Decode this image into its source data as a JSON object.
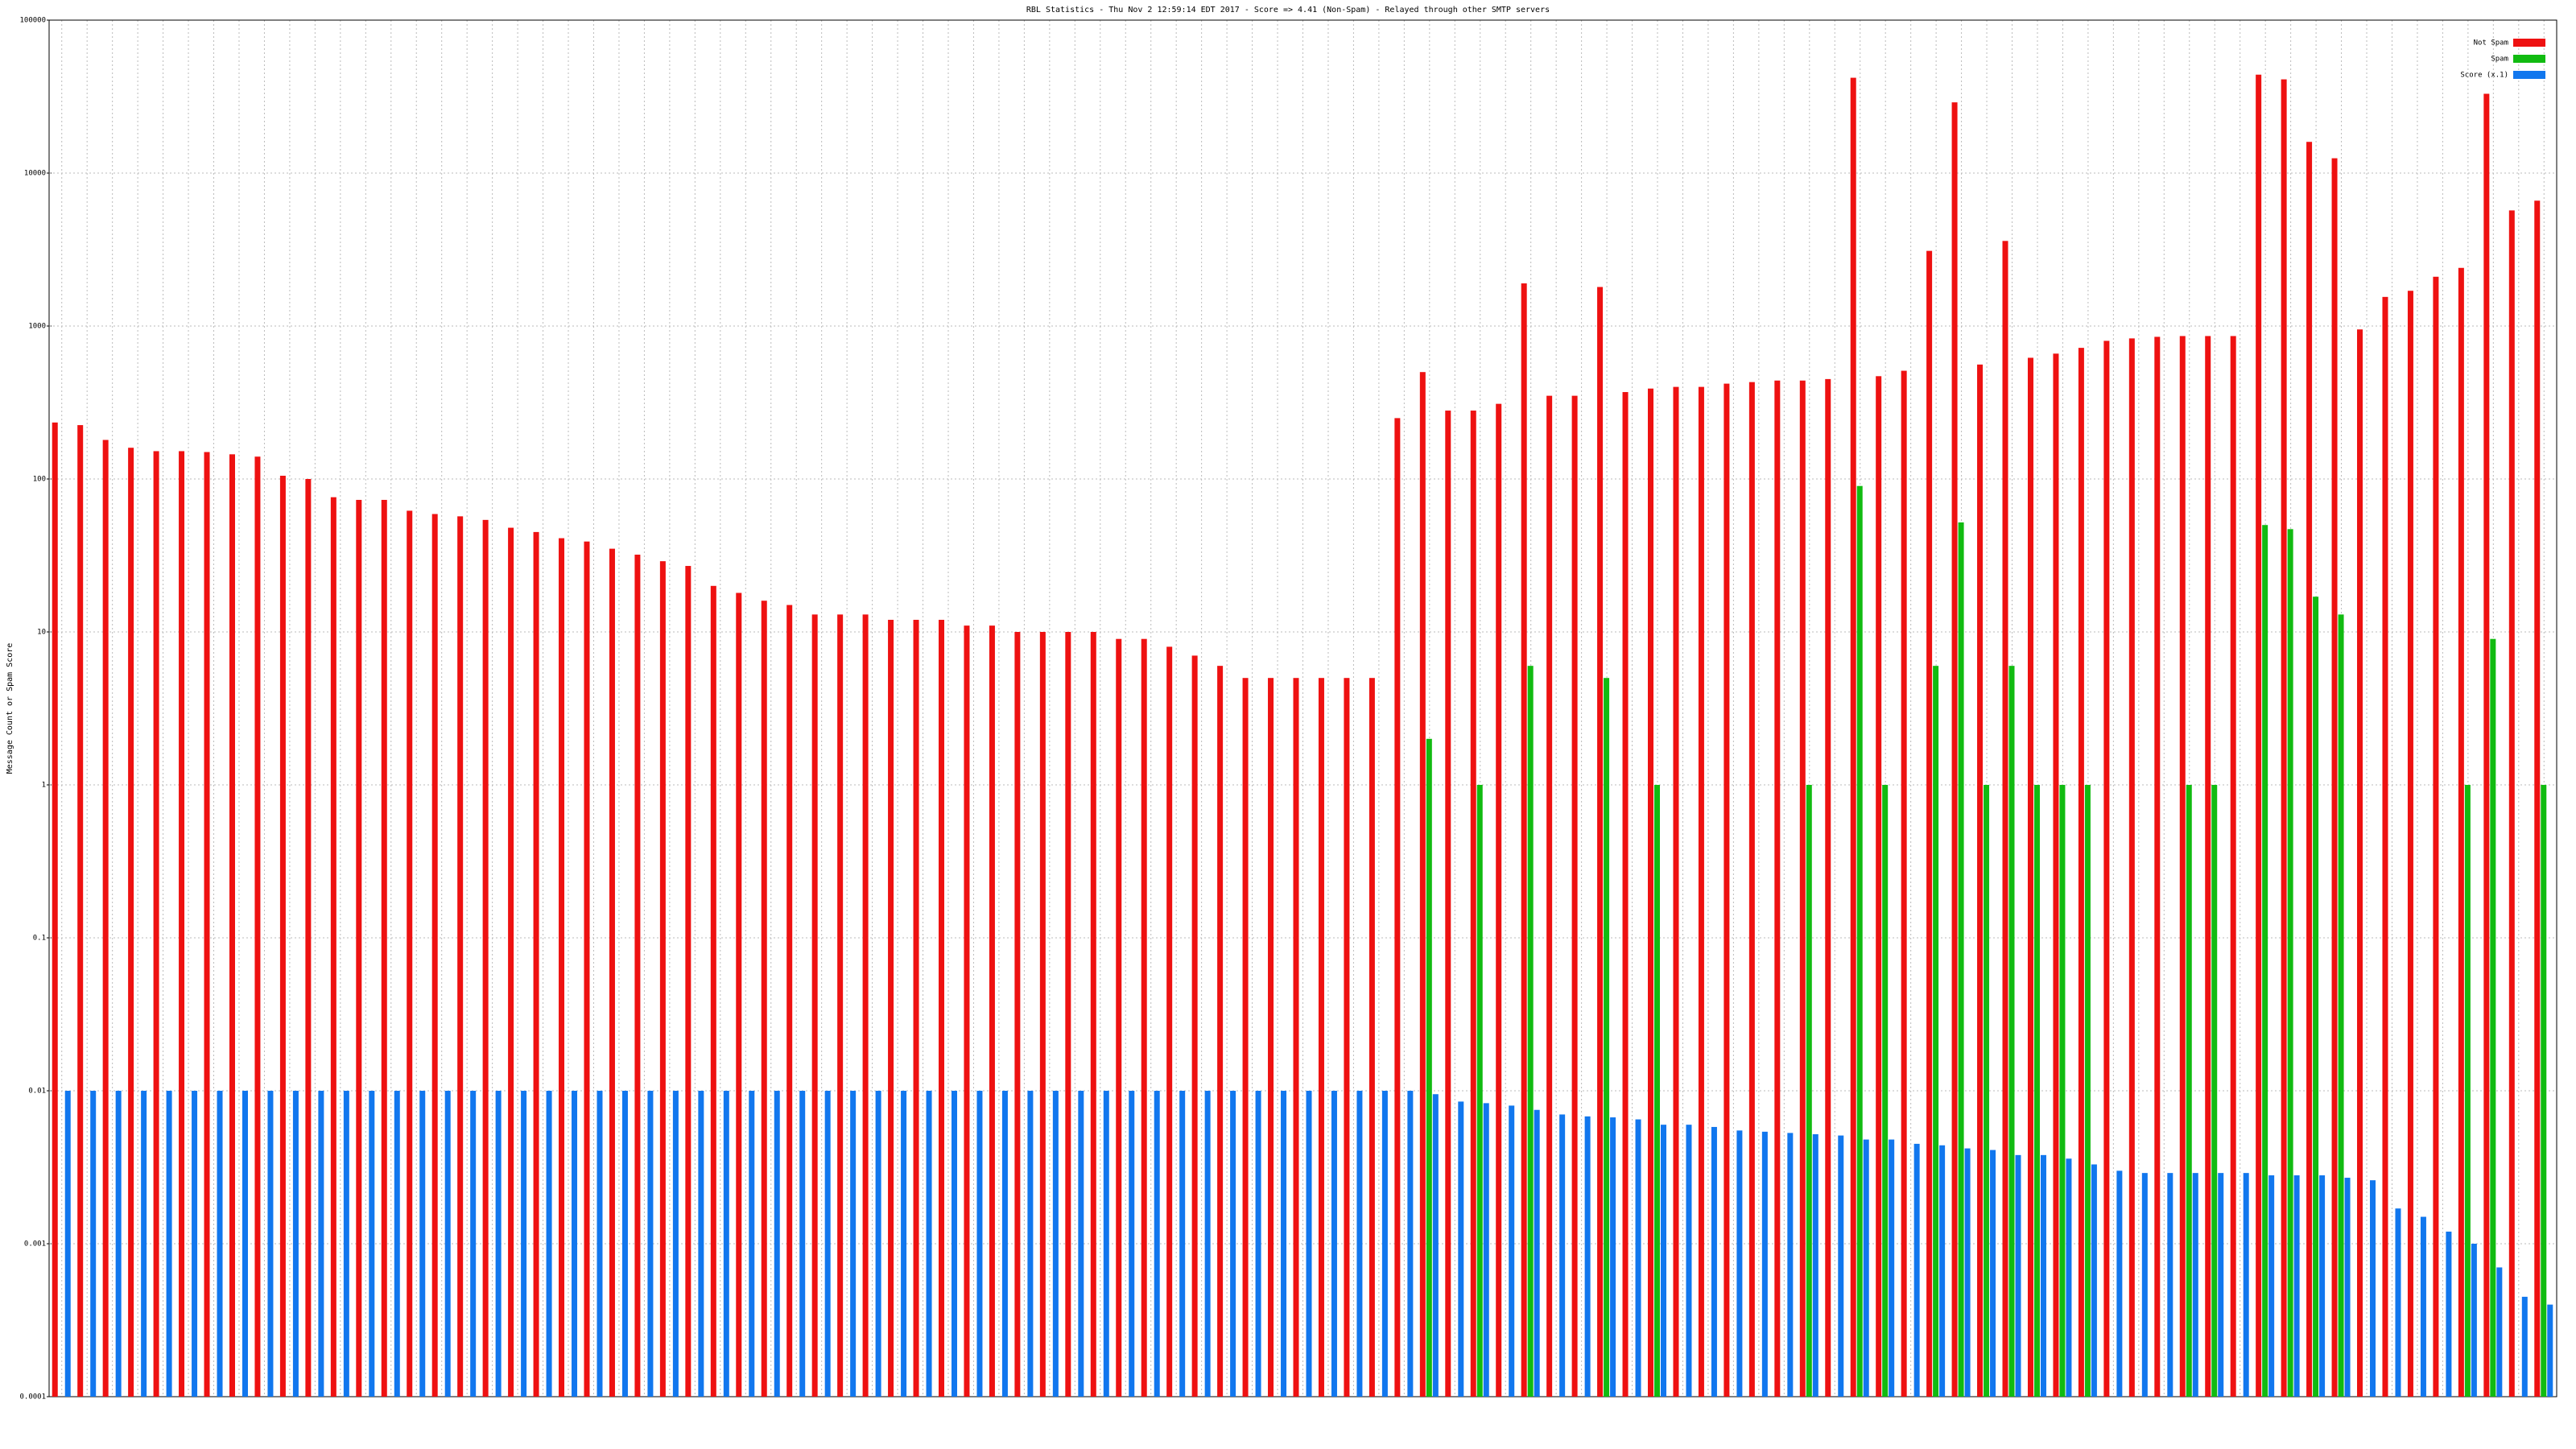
{
  "chart_data": {
    "type": "bar",
    "title": "RBL Statistics - Thu Nov  2 12:59:14 EDT 2017 - Score => 4.41 (Non-Spam) - Relayed through other SMTP servers",
    "y_label": "Message Count or Spam Score",
    "y_scale": "log",
    "grid": true,
    "legend_position": "top-right",
    "ylim": [
      0.0001,
      100000
    ],
    "yticks": [
      0.0001,
      0.001,
      0.01,
      0.1,
      1,
      10,
      100,
      1000,
      10000,
      100000
    ],
    "categories": [
      null,
      null,
      null,
      null,
      null,
      null,
      null,
      null,
      null,
      null,
      null,
      null,
      null,
      null,
      null,
      null,
      null,
      null,
      null,
      null,
      null,
      null,
      null,
      null,
      null,
      null,
      null,
      null,
      null,
      null,
      null,
      null,
      null,
      null,
      null,
      null,
      null,
      null,
      null,
      null,
      null,
      null,
      null,
      null,
      null,
      null,
      null,
      null,
      null,
      null,
      null,
      null,
      null,
      null,
      null,
      null,
      null,
      null,
      null,
      null,
      null,
      null,
      null,
      null,
      null,
      null,
      null,
      null,
      null,
      null,
      null,
      null,
      null,
      null,
      null,
      null,
      null,
      null,
      null,
      null,
      null,
      null,
      null,
      null,
      null,
      null,
      null,
      null,
      null,
      null,
      null,
      null,
      null,
      null,
      null,
      null,
      null,
      null,
      null
    ],
    "series": [
      {
        "name": "Not Spam",
        "color": "#ee1111",
        "values": [
          234,
          225,
          180,
          160,
          152,
          152,
          150,
          145,
          140,
          105,
          100,
          76,
          73,
          73,
          62,
          59,
          57,
          54,
          48,
          45,
          41,
          39,
          35,
          32,
          29,
          27,
          20,
          18,
          16,
          15,
          13,
          13,
          13,
          12,
          12,
          12,
          11,
          11,
          10,
          10,
          10,
          10,
          9,
          9,
          8,
          7,
          6,
          5,
          5,
          5,
          5,
          5,
          5,
          250,
          500,
          280,
          280,
          310,
          1900,
          350,
          350,
          1800,
          370,
          390,
          400,
          400,
          420,
          430,
          440,
          440,
          450,
          42000,
          470,
          510,
          3100,
          29000,
          560,
          3600,
          620,
          660,
          720,
          800,
          830,
          850,
          860,
          860,
          860,
          44000,
          41000,
          16000,
          12500,
          950,
          1550,
          1700,
          2100,
          2400,
          33000,
          5700,
          6600
        ]
      },
      {
        "name": "Spam",
        "color": "#11bb11",
        "values": [
          null,
          null,
          null,
          null,
          null,
          null,
          null,
          null,
          null,
          null,
          null,
          null,
          null,
          null,
          null,
          null,
          null,
          null,
          null,
          null,
          null,
          null,
          null,
          null,
          null,
          null,
          null,
          null,
          null,
          null,
          null,
          null,
          null,
          null,
          null,
          null,
          null,
          null,
          null,
          null,
          null,
          null,
          null,
          null,
          null,
          null,
          null,
          null,
          null,
          null,
          null,
          null,
          null,
          null,
          2,
          null,
          1,
          null,
          6,
          null,
          null,
          5,
          null,
          1,
          null,
          null,
          null,
          null,
          null,
          1,
          null,
          90,
          1,
          null,
          6,
          52,
          1,
          6,
          1,
          1,
          1,
          null,
          null,
          null,
          1,
          1,
          null,
          50,
          47,
          17,
          13,
          null,
          null,
          null,
          null,
          1,
          9,
          null,
          1
        ]
      },
      {
        "name": "Score (x.1)",
        "color": "#1177ee",
        "values": [
          0.01,
          0.01,
          0.01,
          0.01,
          0.01,
          0.01,
          0.01,
          0.01,
          0.01,
          0.01,
          0.01,
          0.01,
          0.01,
          0.01,
          0.01,
          0.01,
          0.01,
          0.01,
          0.01,
          0.01,
          0.01,
          0.01,
          0.01,
          0.01,
          0.01,
          0.01,
          0.01,
          0.01,
          0.01,
          0.01,
          0.01,
          0.01,
          0.01,
          0.01,
          0.01,
          0.01,
          0.01,
          0.01,
          0.01,
          0.01,
          0.01,
          0.01,
          0.01,
          0.01,
          0.01,
          0.01,
          0.01,
          0.01,
          0.01,
          0.01,
          0.01,
          0.01,
          0.01,
          0.01,
          0.0095,
          0.0085,
          0.0083,
          0.008,
          0.0075,
          0.007,
          0.0068,
          0.0067,
          0.0065,
          0.006,
          0.006,
          0.0058,
          0.0055,
          0.0054,
          0.0053,
          0.0052,
          0.0051,
          0.0048,
          0.0048,
          0.0045,
          0.0044,
          0.0042,
          0.0041,
          0.0038,
          0.0038,
          0.0036,
          0.0033,
          0.003,
          0.0029,
          0.0029,
          0.0029,
          0.0029,
          0.0029,
          0.0028,
          0.0028,
          0.0028,
          0.0027,
          0.0026,
          0.0017,
          0.0015,
          0.0012,
          0.001,
          0.0007,
          0.00045,
          0.0004
        ]
      }
    ]
  }
}
